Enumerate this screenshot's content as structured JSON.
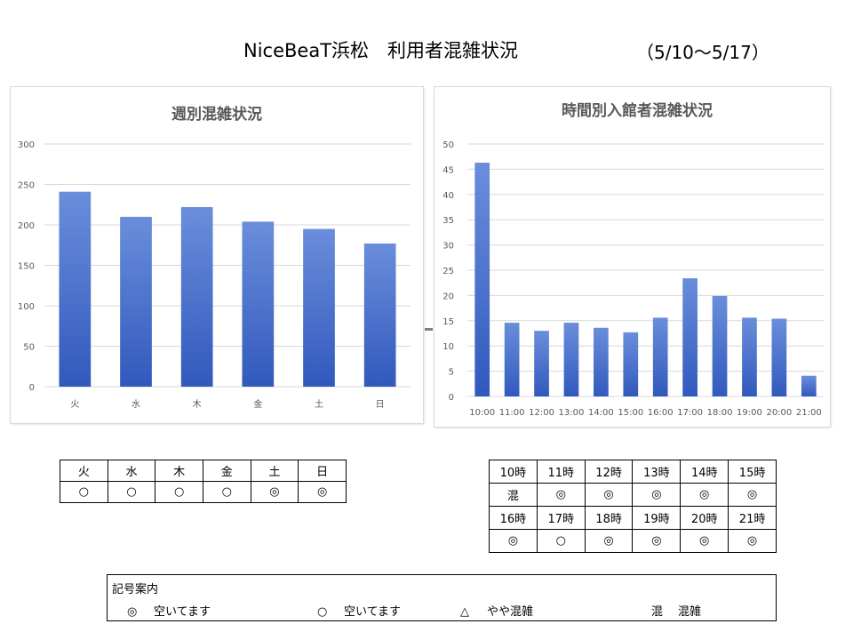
{
  "header": {
    "title": "NiceBeaT浜松　利用者混雑状況",
    "period": "（5/10～5/17）"
  },
  "colors": {
    "bar_top": "#6A8EDB",
    "bar_bottom": "#3159BD",
    "grid": "#d9d9d9",
    "axis_text": "#595959"
  },
  "chart_data": [
    {
      "type": "bar",
      "title": "週別混雑状況",
      "categories": [
        "火",
        "水",
        "木",
        "金",
        "土",
        "日"
      ],
      "values": [
        241,
        210,
        222,
        204,
        195,
        177
      ],
      "ylim": [
        0,
        300
      ],
      "yticks": [
        "0",
        "50",
        "100",
        "150",
        "200",
        "250",
        "300"
      ],
      "grid": true
    },
    {
      "type": "bar",
      "title": "時間別入館者混雑状況",
      "categories": [
        "10:00",
        "11:00",
        "12:00",
        "13:00",
        "14:00",
        "15:00",
        "16:00",
        "17:00",
        "18:00",
        "19:00",
        "20:00",
        "21:00"
      ],
      "values": [
        46.3,
        14.6,
        13.0,
        14.6,
        13.6,
        12.7,
        15.6,
        23.4,
        19.9,
        15.6,
        15.4,
        4.1
      ],
      "ylim": [
        0,
        50
      ],
      "yticks": [
        "0",
        "5",
        "10",
        "15",
        "20",
        "25",
        "30",
        "35",
        "40",
        "45",
        "50"
      ],
      "grid": true
    }
  ],
  "weekly_table": {
    "days": [
      "火",
      "水",
      "木",
      "金",
      "土",
      "日"
    ],
    "status": [
      "○",
      "○",
      "○",
      "○",
      "◎",
      "◎"
    ]
  },
  "hourly_table": {
    "hours_row1": [
      "10時",
      "11時",
      "12時",
      "13時",
      "14時",
      "15時"
    ],
    "status_row1": [
      "混",
      "◎",
      "◎",
      "◎",
      "◎",
      "◎"
    ],
    "hours_row2": [
      "16時",
      "17時",
      "18時",
      "19時",
      "20時",
      "21時"
    ],
    "status_row2": [
      "◎",
      "○",
      "◎",
      "◎",
      "◎",
      "◎"
    ]
  },
  "legend": {
    "title": "記号案内",
    "items": [
      {
        "symbol": "◎",
        "label": "空いてます"
      },
      {
        "symbol": "○",
        "label": "空いてます"
      },
      {
        "symbol": "△",
        "label": "やや混雑"
      },
      {
        "symbol": "混",
        "label": "混雑"
      }
    ]
  }
}
